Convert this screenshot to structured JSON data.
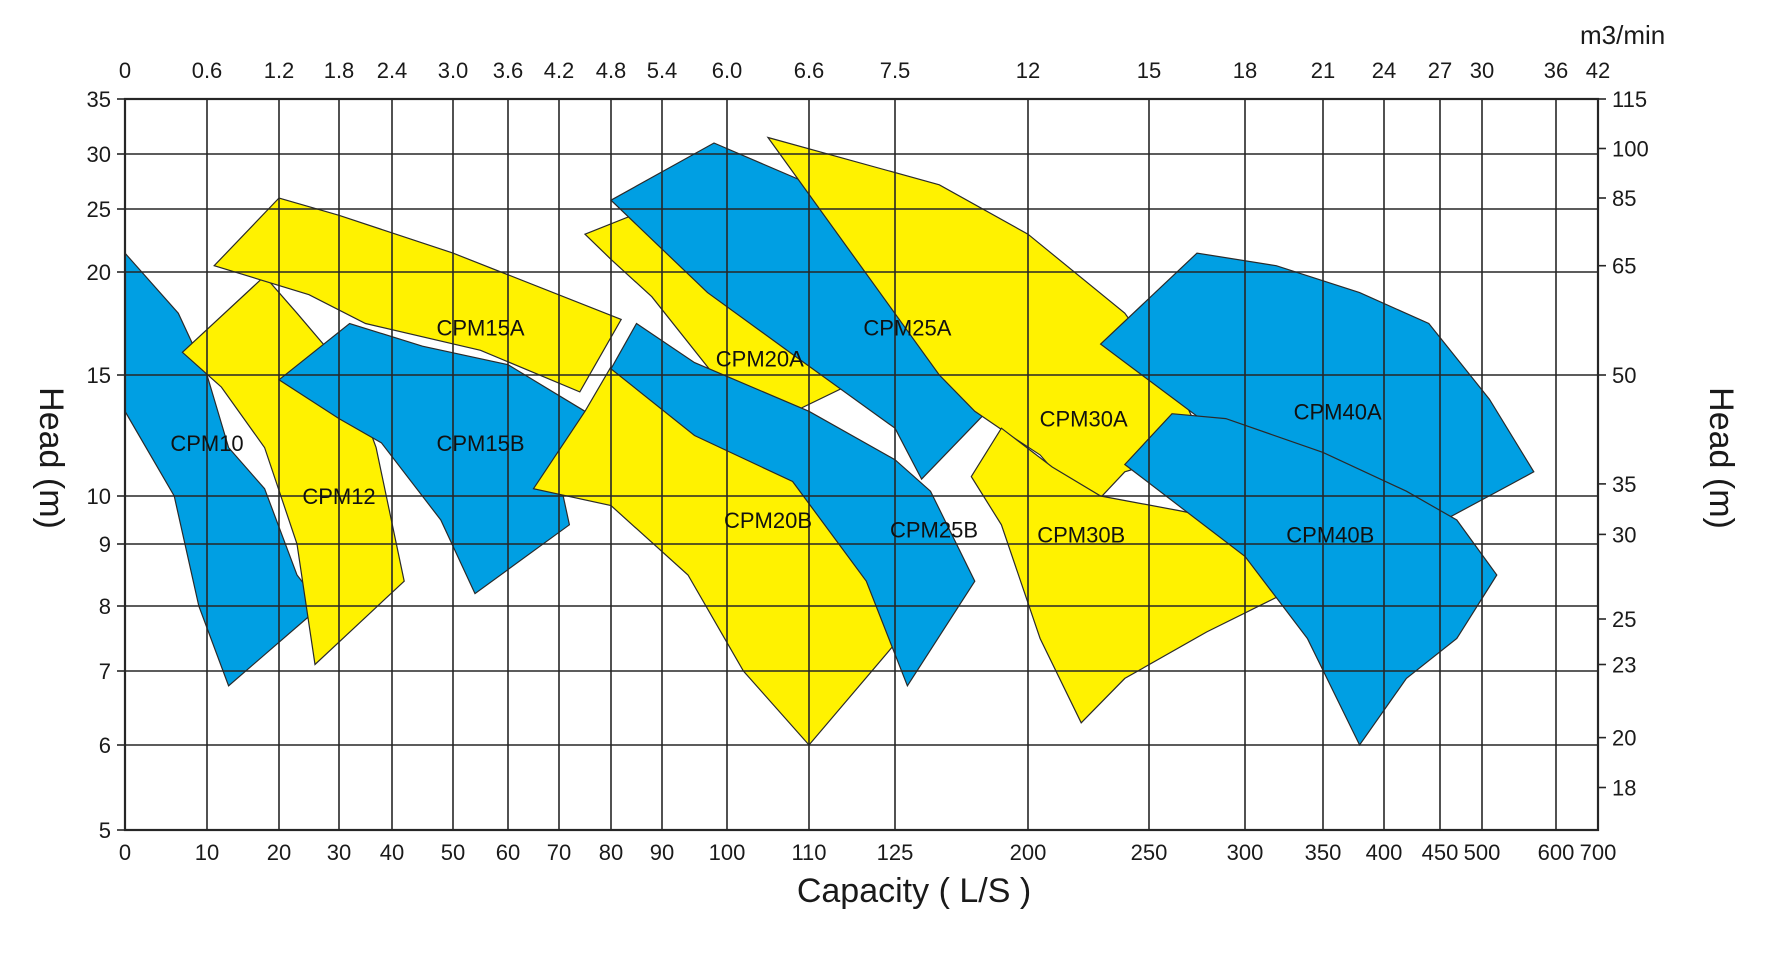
{
  "chart_data": {
    "type": "area",
    "title": "",
    "xlabel": "Capacity ( L/S )",
    "ylabel": "Head (m)",
    "ylabel_right": "Head (m)",
    "x2label": "m3/min",
    "x_scale": "log",
    "y_scale": "log",
    "xlim": [
      0,
      700
    ],
    "ylim": [
      5,
      35
    ],
    "grid": true,
    "colors": {
      "yellow": "#FFF200",
      "blue": "#009FE3",
      "grid": "#262626"
    },
    "x_ticks": [
      "0",
      "10",
      "20",
      "30",
      "40",
      "50",
      "60",
      "70",
      "80",
      "90",
      "100",
      "110",
      "125",
      "200",
      "250",
      "300",
      "350",
      "400",
      "450",
      "500",
      "600",
      "700"
    ],
    "x_tick_values": [
      0,
      10,
      20,
      30,
      40,
      50,
      60,
      70,
      80,
      90,
      100,
      110,
      125,
      200,
      250,
      300,
      350,
      400,
      450,
      500,
      600,
      700
    ],
    "x2_ticks": [
      "0",
      "0.6",
      "1.2",
      "1.8",
      "2.4",
      "3.0",
      "3.6",
      "4.2",
      "4.8",
      "5.4",
      "6.0",
      "6.6",
      "7.5",
      "12",
      "15",
      "18",
      "21",
      "24",
      "27",
      "30",
      "36",
      "42"
    ],
    "y_ticks": [
      "35",
      "30",
      "25",
      "20",
      "15",
      "10",
      "9",
      "8",
      "7",
      "6",
      "5"
    ],
    "y_tick_values": [
      35,
      30,
      25,
      20,
      15,
      10,
      9,
      8,
      7,
      6,
      5
    ],
    "y2_ticks": [
      "115",
      "100",
      "85",
      "65",
      "50",
      "35",
      "30",
      "25",
      "23",
      "20",
      "18"
    ],
    "y2_tick_values": [
      35,
      30.5,
      26,
      20.5,
      15,
      10.5,
      9.2,
      7.8,
      7.1,
      6.1,
      5.5
    ],
    "regions": [
      {
        "name": "CPM10",
        "color": "blue",
        "label_at": [
          10,
          12.2
        ],
        "points": [
          [
            0,
            21.5
          ],
          [
            6.5,
            18
          ],
          [
            10,
            15
          ],
          [
            13,
            12
          ],
          [
            18,
            10.3
          ],
          [
            23,
            8.5
          ],
          [
            27,
            8
          ],
          [
            13,
            6.8
          ],
          [
            9,
            8
          ],
          [
            6,
            10
          ],
          [
            0,
            13.5
          ]
        ]
      },
      {
        "name": "CPM12",
        "color": "yellow",
        "label_at": [
          30,
          10
        ],
        "points": [
          [
            7,
            16.1
          ],
          [
            18,
            19.8
          ],
          [
            23,
            18
          ],
          [
            32,
            15
          ],
          [
            37,
            12
          ],
          [
            42,
            8.4
          ],
          [
            26,
            7.1
          ],
          [
            23,
            9
          ],
          [
            18,
            12
          ],
          [
            12,
            14.5
          ]
        ]
      },
      {
        "name": "CPM15A",
        "color": "yellow",
        "label_at": [
          55,
          17.3
        ],
        "points": [
          [
            11,
            20.5
          ],
          [
            20,
            26
          ],
          [
            30,
            24.5
          ],
          [
            50,
            21.5
          ],
          [
            82,
            17.7
          ],
          [
            74,
            14.3
          ],
          [
            55,
            16.2
          ],
          [
            35,
            17.5
          ],
          [
            25,
            18.9
          ]
        ]
      },
      {
        "name": "CPM15B",
        "color": "blue",
        "label_at": [
          55,
          12.2
        ],
        "points": [
          [
            20,
            14.8
          ],
          [
            32,
            17.5
          ],
          [
            45,
            16.4
          ],
          [
            60,
            15.5
          ],
          [
            75,
            13.5
          ],
          [
            70,
            10.8
          ],
          [
            72,
            9.4
          ],
          [
            54,
            8.2
          ],
          [
            48,
            9.5
          ],
          [
            38,
            12.2
          ],
          [
            30,
            13.2
          ]
        ]
      },
      {
        "name": "CPM20B",
        "color": "yellow",
        "label_at": [
          105,
          9.5
        ],
        "points": [
          [
            65,
            10.3
          ],
          [
            75,
            13.5
          ],
          [
            80,
            15.4
          ],
          [
            95,
            13.5
          ],
          [
            108,
            12.2
          ],
          [
            125,
            9.8
          ],
          [
            140,
            7.9
          ],
          [
            110,
            6
          ],
          [
            102,
            7
          ],
          [
            94,
            8.5
          ],
          [
            80,
            9.8
          ]
        ]
      },
      {
        "name": "CPM20A",
        "color": "yellow",
        "label_at": [
          104,
          15.8
        ],
        "points": [
          [
            75,
            23
          ],
          [
            90,
            25.5
          ],
          [
            100,
            21.5
          ],
          [
            110,
            18.5
          ],
          [
            125,
            15.6
          ],
          [
            104,
            12.8
          ],
          [
            98,
            15
          ],
          [
            88,
            18.8
          ],
          [
            80,
            21
          ]
        ]
      },
      {
        "name": "CPM25B",
        "color": "blue",
        "label_at": [
          147,
          9.3
        ],
        "points": [
          [
            80,
            15.3
          ],
          [
            85,
            17.5
          ],
          [
            95,
            15.6
          ],
          [
            110,
            13.5
          ],
          [
            125,
            11.5
          ],
          [
            145,
            10.2
          ],
          [
            170,
            8.4
          ],
          [
            132,
            6.8
          ],
          [
            120,
            8.4
          ],
          [
            108,
            10.6
          ],
          [
            95,
            12.5
          ]
        ]
      },
      {
        "name": "CPM25A",
        "color": "blue",
        "label_at": [
          132,
          17.3
        ],
        "points": [
          [
            80,
            25.8
          ],
          [
            98,
            31
          ],
          [
            118,
            25.5
          ],
          [
            140,
            20.5
          ],
          [
            168,
            16
          ],
          [
            200,
            15.3
          ],
          [
            140,
            10.7
          ],
          [
            125,
            12.8
          ],
          [
            108,
            16
          ],
          [
            97,
            19
          ]
        ]
      },
      {
        "name": "CPM30A",
        "color": "yellow",
        "label_at": [
          223,
          13.2
        ],
        "points": [
          [
            105,
            31.5
          ],
          [
            150,
            27.2
          ],
          [
            200,
            23
          ],
          [
            240,
            18
          ],
          [
            265,
            14.5
          ],
          [
            280,
            12
          ],
          [
            240,
            11
          ],
          [
            225,
            9.7
          ],
          [
            205,
            11.7
          ],
          [
            190,
            12.5
          ],
          [
            170,
            13.5
          ],
          [
            150,
            15
          ]
        ]
      },
      {
        "name": "CPM30B",
        "color": "yellow",
        "label_at": [
          222,
          9.2
        ],
        "points": [
          [
            168,
            10.8
          ],
          [
            185,
            12.8
          ],
          [
            210,
            11.2
          ],
          [
            230,
            10
          ],
          [
            265,
            9.7
          ],
          [
            290,
            9.5
          ],
          [
            325,
            8.2
          ],
          [
            280,
            7.6
          ],
          [
            240,
            6.9
          ],
          [
            222,
            6.3
          ],
          [
            205,
            7.5
          ],
          [
            185,
            9.4
          ]
        ]
      },
      {
        "name": "CPM40A",
        "color": "blue",
        "label_at": [
          362,
          13.5
        ],
        "points": [
          [
            230,
            16.5
          ],
          [
            275,
            21.5
          ],
          [
            320,
            20.5
          ],
          [
            380,
            19
          ],
          [
            440,
            17.5
          ],
          [
            510,
            14
          ],
          [
            570,
            11
          ],
          [
            540,
            10.5
          ],
          [
            430,
            9.2
          ],
          [
            370,
            11
          ],
          [
            280,
            13
          ]
        ]
      },
      {
        "name": "CPM40B",
        "color": "blue",
        "label_at": [
          356,
          9.2
        ],
        "points": [
          [
            240,
            11.3
          ],
          [
            262,
            13.4
          ],
          [
            290,
            13.2
          ],
          [
            350,
            11.8
          ],
          [
            420,
            10.2
          ],
          [
            470,
            9.5
          ],
          [
            520,
            8.5
          ],
          [
            470,
            7.5
          ],
          [
            420,
            6.9
          ],
          [
            380,
            6
          ],
          [
            340,
            7.5
          ],
          [
            300,
            8.8
          ]
        ]
      }
    ]
  }
}
